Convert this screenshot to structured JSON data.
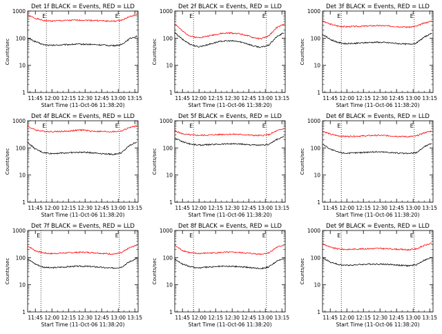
{
  "panel_shared": {
    "xlabel": "Start Time (11-Oct-06 11:38:20)",
    "ylabel": "Counts/sec",
    "x_tick_labels": [
      "11:45",
      "12:00",
      "12:15",
      "12:30",
      "12:45",
      "13:00",
      "13:15"
    ],
    "y_tick_labels": [
      "1",
      "10",
      "100",
      "1000"
    ],
    "marker_label": "E"
  },
  "colors": {
    "events": "#000000",
    "lld": "#ff0000",
    "axis": "#000000",
    "background": "#ffffff"
  },
  "chart_data": [
    {
      "type": "line",
      "title": "Det 1f BLACK = Events, RED = LLD",
      "x": [
        "11:38",
        "11:45",
        "11:52",
        "11:59",
        "12:06",
        "12:14",
        "12:21",
        "12:28",
        "12:35",
        "12:42",
        "12:49",
        "12:56",
        "13:03",
        "13:10",
        "13:17"
      ],
      "series": [
        {
          "name": "Events",
          "values": [
            100,
            75,
            58,
            54,
            56,
            58,
            60,
            60,
            59,
            57,
            55,
            53,
            58,
            95,
            120
          ]
        },
        {
          "name": "LLD",
          "values": [
            700,
            540,
            450,
            430,
            440,
            450,
            460,
            460,
            455,
            445,
            430,
            420,
            460,
            620,
            720
          ]
        }
      ],
      "xlim": [
        "11:38",
        "13:18"
      ],
      "ylim": [
        1,
        1000
      ],
      "yscale": "log",
      "markers": [
        "11:55",
        "13:01"
      ]
    },
    {
      "type": "line",
      "title": "Det 2f BLACK = Events, RED = LLD",
      "x": [
        "11:38",
        "11:45",
        "11:52",
        "11:59",
        "12:06",
        "12:14",
        "12:21",
        "12:28",
        "12:35",
        "12:42",
        "12:49",
        "12:56",
        "13:03",
        "13:10",
        "13:17"
      ],
      "series": [
        {
          "name": "Events",
          "values": [
            160,
            90,
            60,
            48,
            55,
            68,
            78,
            80,
            76,
            66,
            52,
            46,
            55,
            110,
            160
          ]
        },
        {
          "name": "LLD",
          "values": [
            350,
            180,
            120,
            105,
            115,
            135,
            150,
            155,
            150,
            130,
            105,
            95,
            120,
            240,
            330
          ]
        }
      ],
      "xlim": [
        "11:38",
        "13:18"
      ],
      "ylim": [
        1,
        1000
      ],
      "yscale": "log",
      "markers": [
        "11:55",
        "13:01"
      ]
    },
    {
      "type": "line",
      "title": "Det 3f BLACK = Events, RED = LLD",
      "x": [
        "11:38",
        "11:45",
        "11:52",
        "11:59",
        "12:06",
        "12:14",
        "12:21",
        "12:28",
        "12:35",
        "12:42",
        "12:49",
        "12:56",
        "13:03",
        "13:10",
        "13:17"
      ],
      "series": [
        {
          "name": "Events",
          "values": [
            140,
            90,
            70,
            62,
            64,
            67,
            70,
            71,
            69,
            66,
            62,
            60,
            66,
            110,
            150
          ]
        },
        {
          "name": "LLD",
          "values": [
            420,
            330,
            280,
            265,
            270,
            275,
            285,
            290,
            285,
            275,
            265,
            255,
            275,
            360,
            430
          ]
        }
      ],
      "xlim": [
        "11:38",
        "13:18"
      ],
      "ylim": [
        1,
        1000
      ],
      "yscale": "log",
      "markers": [
        "11:55",
        "13:01"
      ]
    },
    {
      "type": "line",
      "title": "Det 4f BLACK = Events, RED = LLD",
      "x": [
        "11:38",
        "11:45",
        "11:52",
        "11:59",
        "12:06",
        "12:14",
        "12:21",
        "12:28",
        "12:35",
        "12:42",
        "12:49",
        "12:56",
        "13:03",
        "13:10",
        "13:17"
      ],
      "series": [
        {
          "name": "Events",
          "values": [
            160,
            90,
            68,
            62,
            64,
            66,
            68,
            69,
            67,
            64,
            60,
            58,
            66,
            120,
            170
          ]
        },
        {
          "name": "LLD",
          "values": [
            620,
            460,
            410,
            400,
            405,
            410,
            440,
            460,
            415,
            405,
            400,
            395,
            420,
            560,
            650
          ]
        }
      ],
      "xlim": [
        "11:38",
        "13:18"
      ],
      "ylim": [
        1,
        1000
      ],
      "yscale": "log",
      "markers": [
        "11:55",
        "13:01"
      ]
    },
    {
      "type": "line",
      "title": "Det 5f BLACK = Events, RED = LLD",
      "x": [
        "11:38",
        "11:45",
        "11:52",
        "11:59",
        "12:06",
        "12:14",
        "12:21",
        "12:28",
        "12:35",
        "12:42",
        "12:49",
        "12:56",
        "13:03",
        "13:10",
        "13:17"
      ],
      "series": [
        {
          "name": "Events",
          "values": [
            230,
            170,
            140,
            128,
            130,
            135,
            140,
            142,
            140,
            135,
            128,
            124,
            135,
            200,
            260
          ]
        },
        {
          "name": "LLD",
          "values": [
            430,
            330,
            300,
            290,
            295,
            305,
            315,
            320,
            315,
            305,
            290,
            285,
            305,
            420,
            520
          ]
        }
      ],
      "xlim": [
        "11:38",
        "13:18"
      ],
      "ylim": [
        1,
        1000
      ],
      "yscale": "log",
      "markers": [
        "11:55",
        "13:01"
      ]
    },
    {
      "type": "line",
      "title": "Det 6f BLACK = Events, RED = LLD",
      "x": [
        "11:38",
        "11:45",
        "11:52",
        "11:59",
        "12:06",
        "12:14",
        "12:21",
        "12:28",
        "12:35",
        "12:42",
        "12:49",
        "12:56",
        "13:03",
        "13:10",
        "13:17"
      ],
      "series": [
        {
          "name": "Events",
          "values": [
            140,
            90,
            70,
            64,
            65,
            68,
            71,
            72,
            70,
            67,
            63,
            62,
            67,
            110,
            150
          ]
        },
        {
          "name": "LLD",
          "values": [
            420,
            320,
            280,
            265,
            270,
            275,
            285,
            290,
            285,
            275,
            265,
            260,
            275,
            360,
            420
          ]
        }
      ],
      "xlim": [
        "11:38",
        "13:18"
      ],
      "ylim": [
        1,
        1000
      ],
      "yscale": "log",
      "markers": [
        "11:55",
        "13:01"
      ]
    },
    {
      "type": "line",
      "title": "Det 7f BLACK = Events, RED = LLD",
      "x": [
        "11:38",
        "11:45",
        "11:52",
        "11:59",
        "12:06",
        "12:14",
        "12:21",
        "12:28",
        "12:35",
        "12:42",
        "12:49",
        "12:56",
        "13:03",
        "13:10",
        "13:17"
      ],
      "series": [
        {
          "name": "Events",
          "values": [
            90,
            58,
            45,
            42,
            44,
            46,
            48,
            48,
            47,
            45,
            42,
            41,
            45,
            70,
            95
          ]
        },
        {
          "name": "LLD",
          "values": [
            270,
            180,
            150,
            140,
            145,
            150,
            155,
            158,
            154,
            148,
            140,
            136,
            150,
            230,
            290
          ]
        }
      ],
      "xlim": [
        "11:38",
        "13:18"
      ],
      "ylim": [
        1,
        1000
      ],
      "yscale": "log",
      "markers": [
        "11:50",
        "13:01"
      ]
    },
    {
      "type": "line",
      "title": "Det 8f BLACK = Events, RED = LLD",
      "x": [
        "11:38",
        "11:45",
        "11:52",
        "11:59",
        "12:06",
        "12:14",
        "12:21",
        "12:28",
        "12:35",
        "12:42",
        "12:49",
        "12:56",
        "13:03",
        "13:10",
        "13:17"
      ],
      "series": [
        {
          "name": "Events",
          "values": [
            90,
            58,
            46,
            42,
            44,
            46,
            48,
            48,
            47,
            45,
            42,
            40,
            45,
            72,
            95
          ]
        },
        {
          "name": "LLD",
          "values": [
            280,
            185,
            150,
            142,
            146,
            150,
            156,
            158,
            155,
            148,
            140,
            135,
            150,
            235,
            295
          ]
        }
      ],
      "xlim": [
        "11:38",
        "13:18"
      ],
      "ylim": [
        1,
        1000
      ],
      "yscale": "log",
      "markers": [
        "11:55",
        "13:01"
      ]
    },
    {
      "type": "line",
      "title": "Det 9f BLACK = Events, RED = LLD",
      "x": [
        "11:38",
        "11:45",
        "11:52",
        "11:59",
        "12:06",
        "12:14",
        "12:21",
        "12:28",
        "12:35",
        "12:42",
        "12:49",
        "12:56",
        "13:03",
        "13:10",
        "13:17"
      ],
      "series": [
        {
          "name": "Events",
          "values": [
            100,
            68,
            56,
            52,
            54,
            56,
            58,
            58,
            57,
            55,
            52,
            50,
            55,
            80,
            100
          ]
        },
        {
          "name": "LLD",
          "values": [
            330,
            240,
            210,
            200,
            205,
            210,
            215,
            218,
            214,
            208,
            200,
            195,
            210,
            280,
            340
          ]
        }
      ],
      "xlim": [
        "11:38",
        "13:18"
      ],
      "ylim": [
        1,
        1000
      ],
      "yscale": "log",
      "markers": [
        "11:55",
        "13:01"
      ]
    }
  ]
}
